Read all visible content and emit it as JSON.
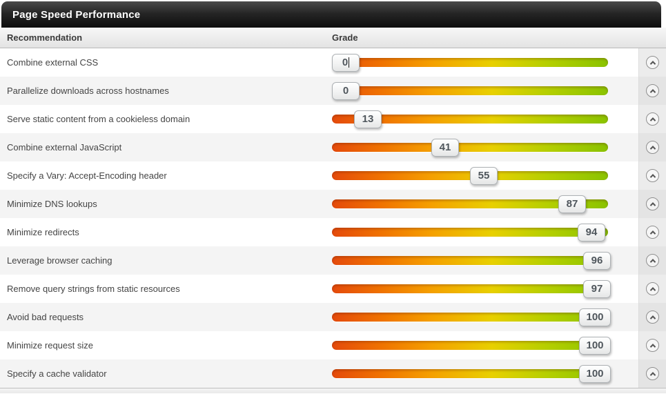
{
  "panel": {
    "title": "Page Speed Performance"
  },
  "table": {
    "columns": {
      "recommendation": "Recommendation",
      "grade": "Grade"
    },
    "row_action_icon": "chevron-up-icon",
    "rows": [
      {
        "label": "Combine external CSS",
        "score": 0,
        "caret": true
      },
      {
        "label": "Parallelize downloads across hostnames",
        "score": 0
      },
      {
        "label": "Serve static content from a cookieless domain",
        "score": 13
      },
      {
        "label": "Combine external JavaScript",
        "score": 41
      },
      {
        "label": "Specify a Vary: Accept-Encoding header",
        "score": 55
      },
      {
        "label": "Minimize DNS lookups",
        "score": 87
      },
      {
        "label": "Minimize redirects",
        "score": 94
      },
      {
        "label": "Leverage browser caching",
        "score": 96
      },
      {
        "label": "Remove query strings from static resources",
        "score": 97
      },
      {
        "label": "Avoid bad requests",
        "score": 100
      },
      {
        "label": "Minimize request size",
        "score": 100
      },
      {
        "label": "Specify a cache validator",
        "score": 100
      }
    ]
  },
  "colors": {
    "bar_gradient": [
      "#e44a0c",
      "#f5a000",
      "#e8d000",
      "#b5cf00",
      "#8ac300"
    ],
    "titlebar_top": "#4a4a4a",
    "titlebar_bottom": "#0d0d0d",
    "badge_text": "#4f565c",
    "row_alt_bg": "#f4f4f4"
  }
}
